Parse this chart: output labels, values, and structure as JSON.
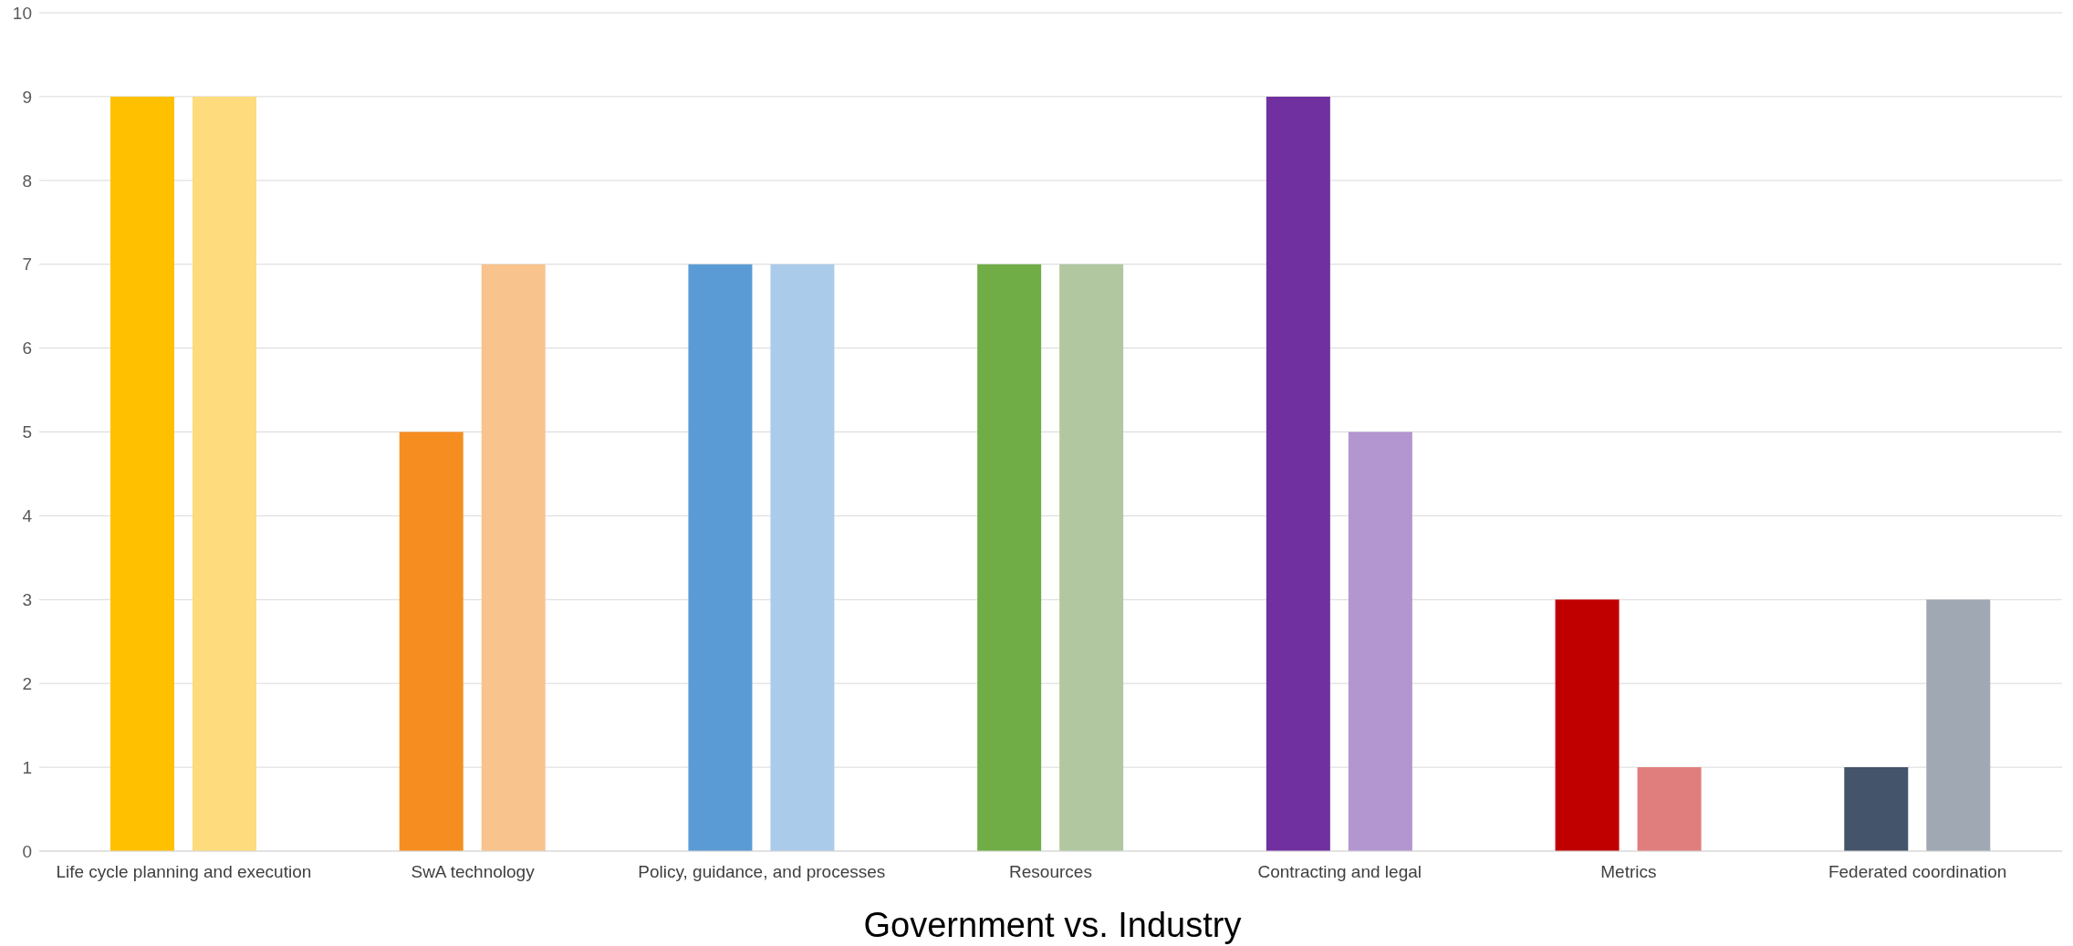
{
  "chart_data": {
    "type": "bar",
    "xlabel": "Government vs. Industry",
    "categories": [
      "Life cycle planning and execution",
      "SwA technology",
      "Policy, guidance, and processes",
      "Resources",
      "Contracting and legal",
      "Metrics",
      "Federated coordination"
    ],
    "series": [
      {
        "colors": [
          "#ffc000",
          "#f68d21",
          "#5b9bd5",
          "#70ad47",
          "#7030a0",
          "#c00000",
          "#44546a"
        ],
        "values": [
          9,
          5,
          7,
          7,
          9,
          3,
          1
        ]
      },
      {
        "colors": [
          "#fedb7c",
          "#f8c38d",
          "#abcbea",
          "#b0c7a0",
          "#b395cf",
          "#e07e7e",
          "#a0a8b3"
        ],
        "values": [
          9,
          7,
          7,
          7,
          5,
          1,
          3
        ]
      }
    ],
    "ylim": [
      0,
      10
    ],
    "yticks": [
      0,
      1,
      2,
      3,
      4,
      5,
      6,
      7,
      8,
      9,
      10
    ],
    "grid": "y",
    "legend": false
  }
}
